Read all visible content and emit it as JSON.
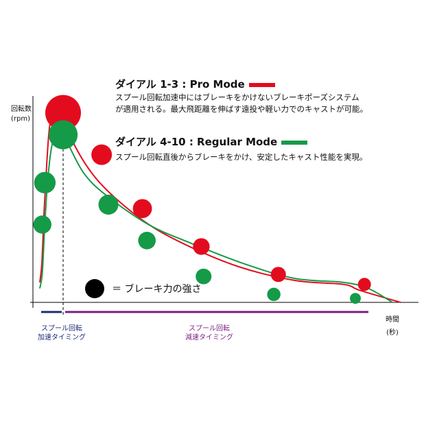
{
  "legend": {
    "pro": {
      "title": "ダイアル 1-3 : Pro Mode",
      "desc1": "スプール回転加速中にはブレーキをかけないブレーキポーズシステム",
      "desc2": "が適用される。最大飛距離を伸ばす遠投や軽い力でのキャストが可能。",
      "color": "#e30c1e"
    },
    "regular": {
      "title": "ダイアル 4-10 : Regular Mode",
      "desc1": "スプール回転直後からブレーキをかけ、安定したキャスト性能を実現。",
      "color": "#159a48"
    },
    "brake_note": "＝ ブレーキ力の強さ"
  },
  "axes": {
    "y_label1": "回転数",
    "y_label2": "(rpm)",
    "x_label1": "時間",
    "x_label2": "(秒)"
  },
  "phases": {
    "accel1": "スプール回転",
    "accel2": "加速タイミング",
    "accel_color": "#1d2a7a",
    "decel1": "スプール回転",
    "decel2": "減速タイミング",
    "decel_color": "#7a1f7e"
  },
  "chart_data": {
    "type": "line",
    "title": "",
    "xlabel": "時間 (秒)",
    "ylabel": "回転数 (rpm)",
    "x_ticks": false,
    "y_ticks": false,
    "series": [
      {
        "name": "ダイアル 1-3 : Pro Mode",
        "color": "#e30c1e",
        "curve": [
          [
            0,
            0.1
          ],
          [
            0.5,
            0.2
          ],
          [
            1.0,
            0.45
          ],
          [
            1.6,
            0.68
          ],
          [
            2.3,
            0.88
          ],
          [
            3.4,
            0.96
          ],
          [
            5.5,
            0.95
          ],
          [
            7.0,
            0.78
          ],
          [
            10,
            0.6
          ],
          [
            15,
            0.42
          ],
          [
            20,
            0.3
          ],
          [
            27,
            0.18
          ],
          [
            34,
            0.11
          ],
          [
            40,
            0.09
          ],
          [
            42,
            0.06
          ],
          [
            47,
            0.0
          ]
        ],
        "brake_points": [
          {
            "x": 5.5,
            "y": 0.95,
            "strength": 1.0
          },
          {
            "x": 14.0,
            "y": 0.74,
            "strength": 0.5
          },
          {
            "x": 23.0,
            "y": 0.47,
            "strength": 0.45
          },
          {
            "x": 36.0,
            "y": 0.28,
            "strength": 0.37
          },
          {
            "x": 53.0,
            "y": 0.14,
            "strength": 0.32
          },
          {
            "x": 72.0,
            "y": 0.09,
            "strength": 0.25
          }
        ]
      },
      {
        "name": "ダイアル 4-10 : Regular Mode",
        "color": "#159a48",
        "curve": [
          [
            0,
            0.07
          ],
          [
            0.6,
            0.15
          ],
          [
            1.2,
            0.4
          ],
          [
            1.9,
            0.62
          ],
          [
            2.8,
            0.78
          ],
          [
            4.0,
            0.84
          ],
          [
            5.5,
            0.84
          ],
          [
            8.0,
            0.65
          ],
          [
            11,
            0.53
          ],
          [
            16,
            0.39
          ],
          [
            21,
            0.3
          ],
          [
            28,
            0.19
          ],
          [
            34,
            0.12
          ],
          [
            40,
            0.1
          ],
          [
            43,
            0.07
          ],
          [
            46,
            0.0
          ]
        ],
        "brake_points": [
          {
            "x": 0.6,
            "y": 0.39,
            "strength": 0.42
          },
          {
            "x": 1.2,
            "y": 0.6,
            "strength": 0.53
          },
          {
            "x": 5.5,
            "y": 0.84,
            "strength": 0.78
          },
          {
            "x": 15.5,
            "y": 0.49,
            "strength": 0.48
          },
          {
            "x": 24.0,
            "y": 0.31,
            "strength": 0.4
          },
          {
            "x": 36.5,
            "y": 0.13,
            "strength": 0.34
          },
          {
            "x": 52.0,
            "y": 0.04,
            "strength": 0.26
          },
          {
            "x": 70.0,
            "y": 0.02,
            "strength": 0.18
          }
        ]
      }
    ],
    "peak_marker_x": 5.5,
    "xlim": [
      0,
      80
    ],
    "ylim": [
      0,
      1
    ]
  }
}
